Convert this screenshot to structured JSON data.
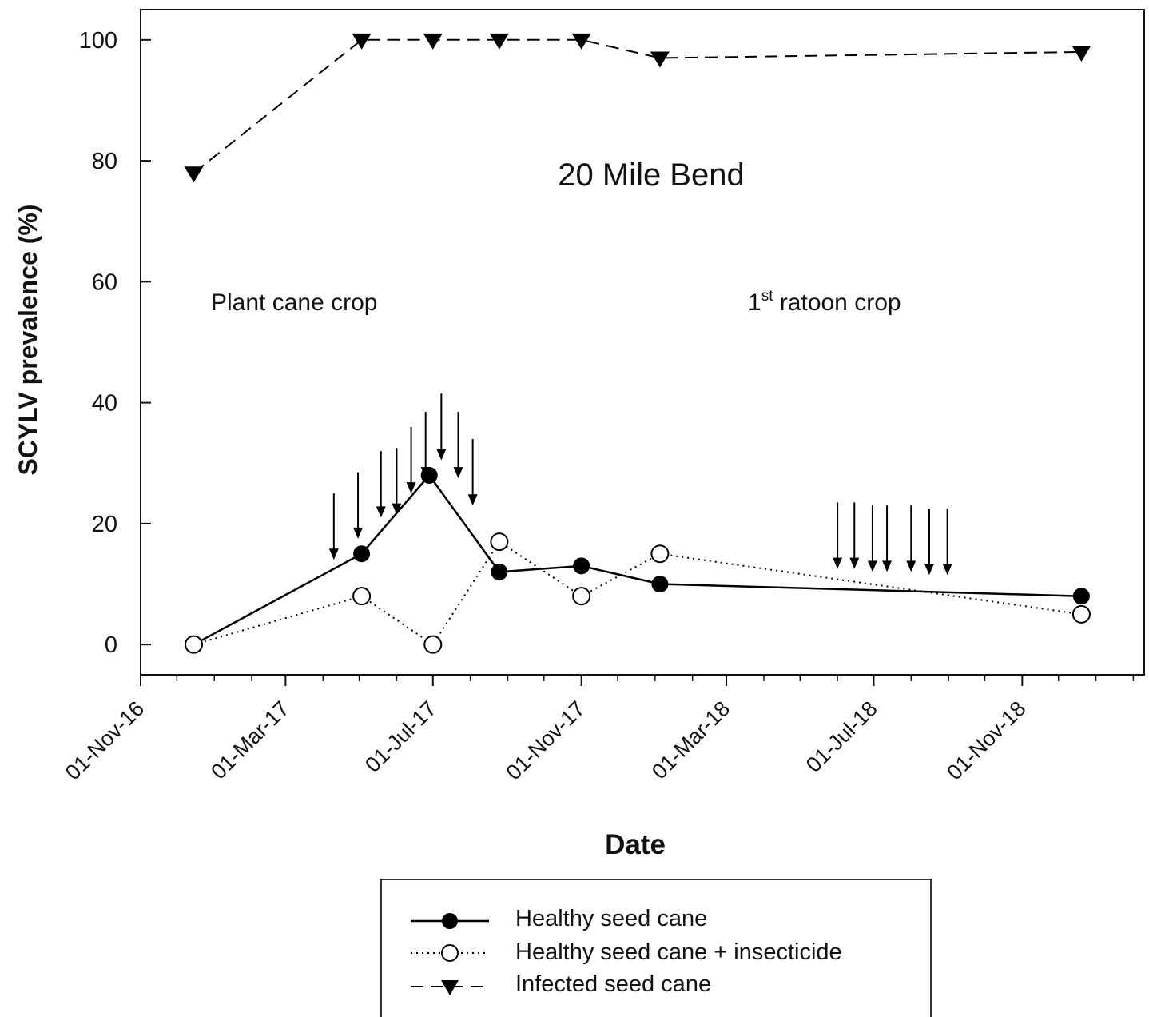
{
  "chart_data": {
    "type": "line",
    "title": "",
    "annotations": {
      "site": "20 Mile Bend",
      "plant_crop": "Plant cane crop",
      "ratoon_prefix": "1",
      "ratoon_sup": "st",
      "ratoon_suffix": " ratoon crop"
    },
    "xlabel": "Date",
    "ylabel": "SCYLV prevalence (%)",
    "ylim": [
      -5,
      105
    ],
    "xlim": [
      "2016-11-01",
      "2019-02-10"
    ],
    "yticks": [
      0,
      20,
      40,
      60,
      80,
      100
    ],
    "xticks": [
      {
        "date": "2016-11-01",
        "label": "01-Nov-16"
      },
      {
        "date": "2017-03-01",
        "label": "01-Mar-17"
      },
      {
        "date": "2017-07-01",
        "label": "01-Jul-17"
      },
      {
        "date": "2017-11-01",
        "label": "01-Nov-17"
      },
      {
        "date": "2018-03-01",
        "label": "01-Mar-18"
      },
      {
        "date": "2018-07-01",
        "label": "01-Jul-18"
      },
      {
        "date": "2018-11-01",
        "label": "01-Nov-18"
      }
    ],
    "series": [
      {
        "name": "Healthy seed cane",
        "style": "solid",
        "marker": "filled-circle",
        "color": "#000000",
        "points": [
          {
            "x": "2016-12-15",
            "y": 0
          },
          {
            "x": "2017-05-03",
            "y": 15
          },
          {
            "x": "2017-06-28",
            "y": 28
          },
          {
            "x": "2017-08-25",
            "y": 12
          },
          {
            "x": "2017-11-01",
            "y": 13
          },
          {
            "x": "2018-01-05",
            "y": 10
          },
          {
            "x": "2018-12-20",
            "y": 8
          }
        ]
      },
      {
        "name": "Healthy seed cane + insecticide",
        "style": "dotted",
        "marker": "open-circle",
        "color": "#000000",
        "points": [
          {
            "x": "2016-12-15",
            "y": 0
          },
          {
            "x": "2017-05-03",
            "y": 8
          },
          {
            "x": "2017-07-01",
            "y": 0
          },
          {
            "x": "2017-08-25",
            "y": 17
          },
          {
            "x": "2017-11-01",
            "y": 8
          },
          {
            "x": "2018-01-05",
            "y": 15
          },
          {
            "x": "2018-12-20",
            "y": 5
          }
        ]
      },
      {
        "name": "Infected seed cane",
        "style": "dashed",
        "marker": "filled-triangle-down",
        "color": "#000000",
        "points": [
          {
            "x": "2016-12-15",
            "y": 78
          },
          {
            "x": "2017-05-03",
            "y": 100
          },
          {
            "x": "2017-07-01",
            "y": 100
          },
          {
            "x": "2017-08-25",
            "y": 100
          },
          {
            "x": "2017-11-01",
            "y": 100
          },
          {
            "x": "2018-01-05",
            "y": 97
          },
          {
            "x": "2018-12-20",
            "y": 98
          }
        ]
      }
    ],
    "insecticide_applications": [
      {
        "x": "2017-04-10",
        "y_top": 25,
        "y_tip": 14
      },
      {
        "x": "2017-04-30",
        "y_top": 28.5,
        "y_tip": 17.5
      },
      {
        "x": "2017-05-19",
        "y_top": 32,
        "y_tip": 21
      },
      {
        "x": "2017-06-01",
        "y_top": 32.5,
        "y_tip": 21.5
      },
      {
        "x": "2017-06-13",
        "y_top": 36,
        "y_tip": 25
      },
      {
        "x": "2017-06-25",
        "y_top": 38.5,
        "y_tip": 27.5
      },
      {
        "x": "2017-07-08",
        "y_top": 41.5,
        "y_tip": 30.5
      },
      {
        "x": "2017-07-22",
        "y_top": 38.5,
        "y_tip": 27.5
      },
      {
        "x": "2017-08-03",
        "y_top": 34,
        "y_tip": 23
      },
      {
        "x": "2018-06-01",
        "y_top": 23.5,
        "y_tip": 12.5
      },
      {
        "x": "2018-06-15",
        "y_top": 23.5,
        "y_tip": 12.5
      },
      {
        "x": "2018-06-30",
        "y_top": 23,
        "y_tip": 12
      },
      {
        "x": "2018-07-12",
        "y_top": 23,
        "y_tip": 12
      },
      {
        "x": "2018-08-01",
        "y_top": 23,
        "y_tip": 12
      },
      {
        "x": "2018-08-16",
        "y_top": 22.5,
        "y_tip": 11.5
      },
      {
        "x": "2018-08-31",
        "y_top": 22.5,
        "y_tip": 11.5
      }
    ],
    "grid": false,
    "legend": {
      "placement": "bottom"
    }
  }
}
